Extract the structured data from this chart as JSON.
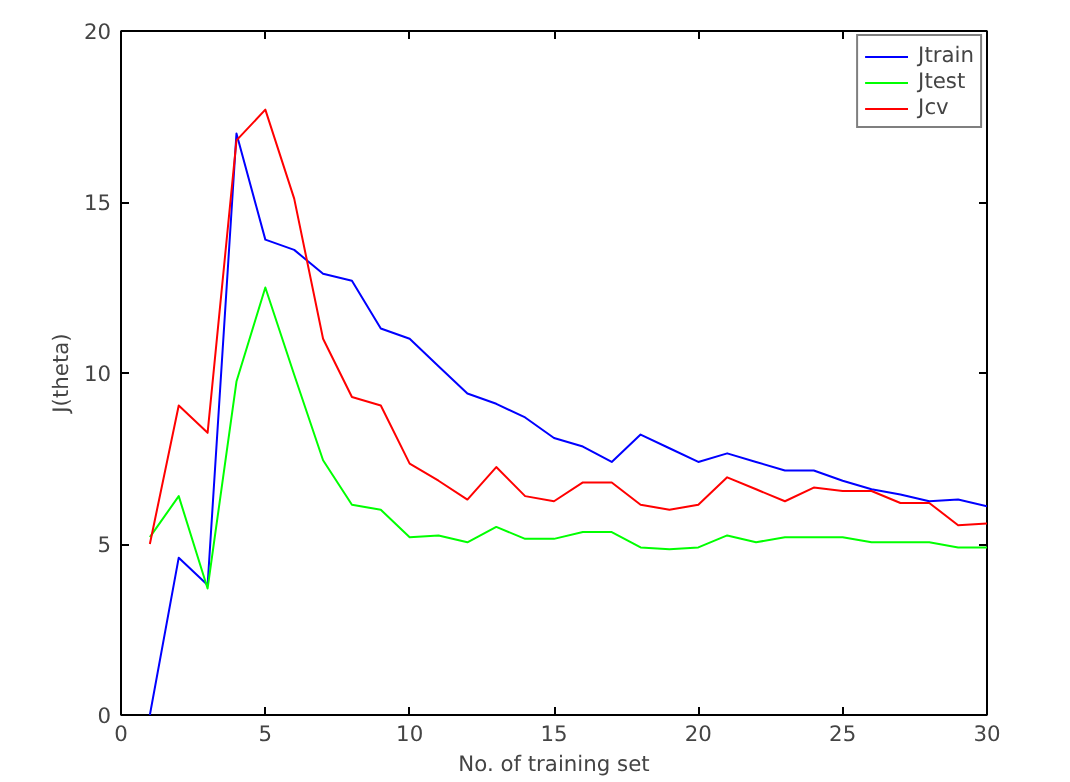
{
  "chart_data": {
    "type": "line",
    "xlabel": "No. of training set",
    "ylabel": "J(theta)",
    "x": [
      1,
      2,
      3,
      4,
      5,
      6,
      7,
      8,
      9,
      10,
      11,
      12,
      13,
      14,
      15,
      16,
      17,
      18,
      19,
      20,
      21,
      22,
      23,
      24,
      25,
      26,
      27,
      28,
      29,
      30
    ],
    "series": [
      {
        "name": "Jtrain",
        "color": "#0000ff",
        "values": [
          0,
          4.6,
          3.8,
          17.0,
          13.9,
          13.6,
          12.9,
          12.7,
          11.3,
          11.0,
          10.2,
          9.4,
          9.1,
          8.7,
          8.1,
          7.85,
          7.4,
          8.2,
          7.8,
          7.4,
          7.65,
          7.4,
          7.15,
          7.15,
          6.85,
          6.6,
          6.45,
          6.25,
          6.3,
          6.1
        ]
      },
      {
        "name": "Jtest",
        "color": "#00ff00",
        "values": [
          5.2,
          6.4,
          3.7,
          9.75,
          12.5,
          9.95,
          7.45,
          6.15,
          6.0,
          5.2,
          5.25,
          5.05,
          5.5,
          5.15,
          5.15,
          5.35,
          5.35,
          4.9,
          4.85,
          4.9,
          5.25,
          5.05,
          5.2,
          5.2,
          5.2,
          5.05,
          5.05,
          5.05,
          4.9,
          4.9
        ]
      },
      {
        "name": "Jcv",
        "color": "#ff0000",
        "values": [
          5.0,
          9.05,
          8.25,
          16.8,
          17.7,
          15.1,
          11.0,
          9.3,
          9.05,
          7.35,
          6.85,
          6.3,
          7.25,
          6.4,
          6.25,
          6.8,
          6.8,
          6.15,
          6.0,
          6.15,
          6.95,
          6.6,
          6.25,
          6.65,
          6.55,
          6.55,
          6.2,
          6.2,
          5.55,
          5.6
        ]
      }
    ],
    "xlim": [
      0,
      30
    ],
    "xticks": [
      0,
      5,
      10,
      15,
      20,
      25,
      30
    ],
    "ylim": [
      0,
      20
    ],
    "yticks": [
      0,
      5,
      10,
      15,
      20
    ],
    "grid": false,
    "legend": "top right",
    "marker": "none",
    "line_style": "solid"
  }
}
